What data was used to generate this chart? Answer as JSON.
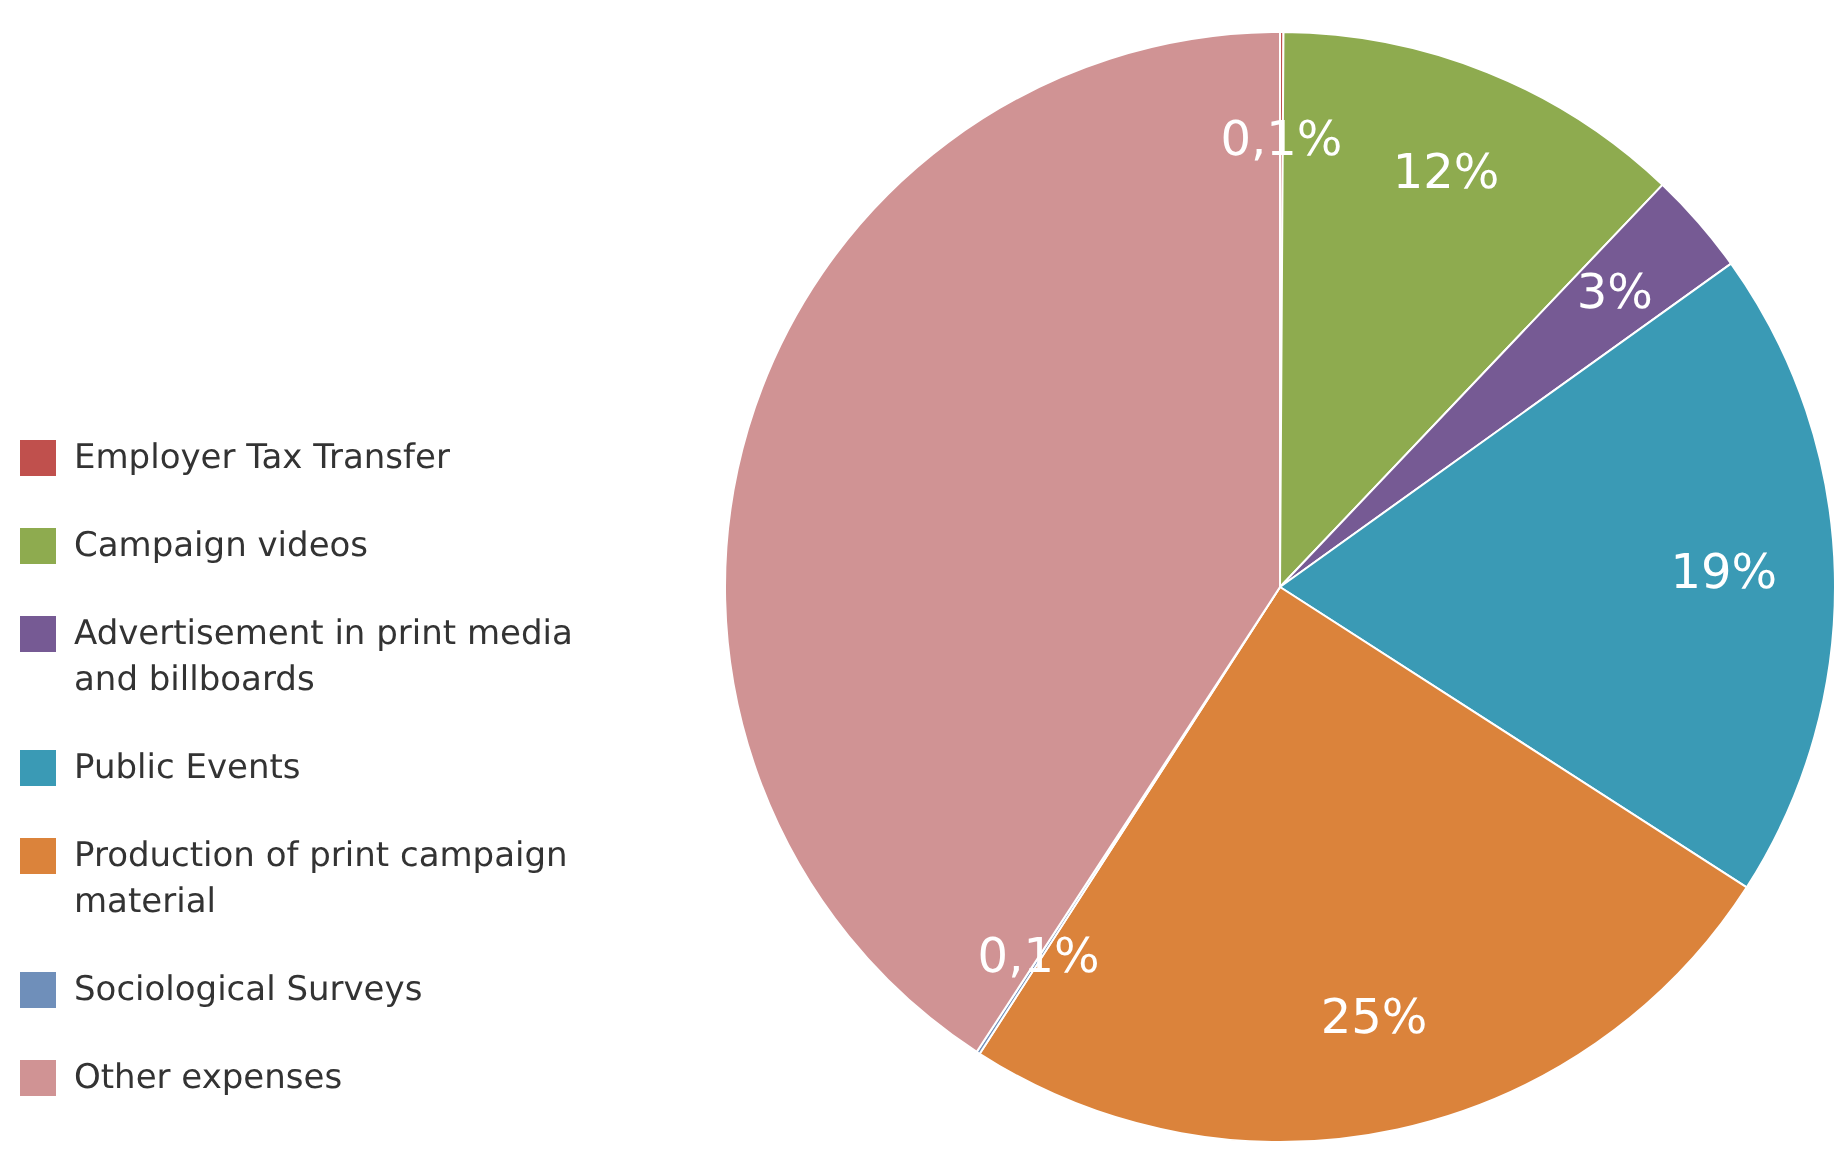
{
  "chart_data": {
    "type": "pie",
    "categories": [
      "Employer Tax Transfer",
      "Campaign videos",
      "Advertisement in print media and billboards",
      "Public Events",
      "Production of print campaign material",
      "Sociological Surveys",
      "Other expenses"
    ],
    "values": [
      0.1,
      12,
      3,
      19,
      25,
      0.1,
      40.8
    ],
    "value_labels": [
      "0,1%",
      "12%",
      "3%",
      "19%",
      "25%",
      "0,1%",
      null
    ],
    "colors": [
      "#c0504d",
      "#8eab4f",
      "#765a94",
      "#3a9ab5",
      "#db833b",
      "#6f8fba",
      "#d09394"
    ],
    "legend": "left"
  }
}
